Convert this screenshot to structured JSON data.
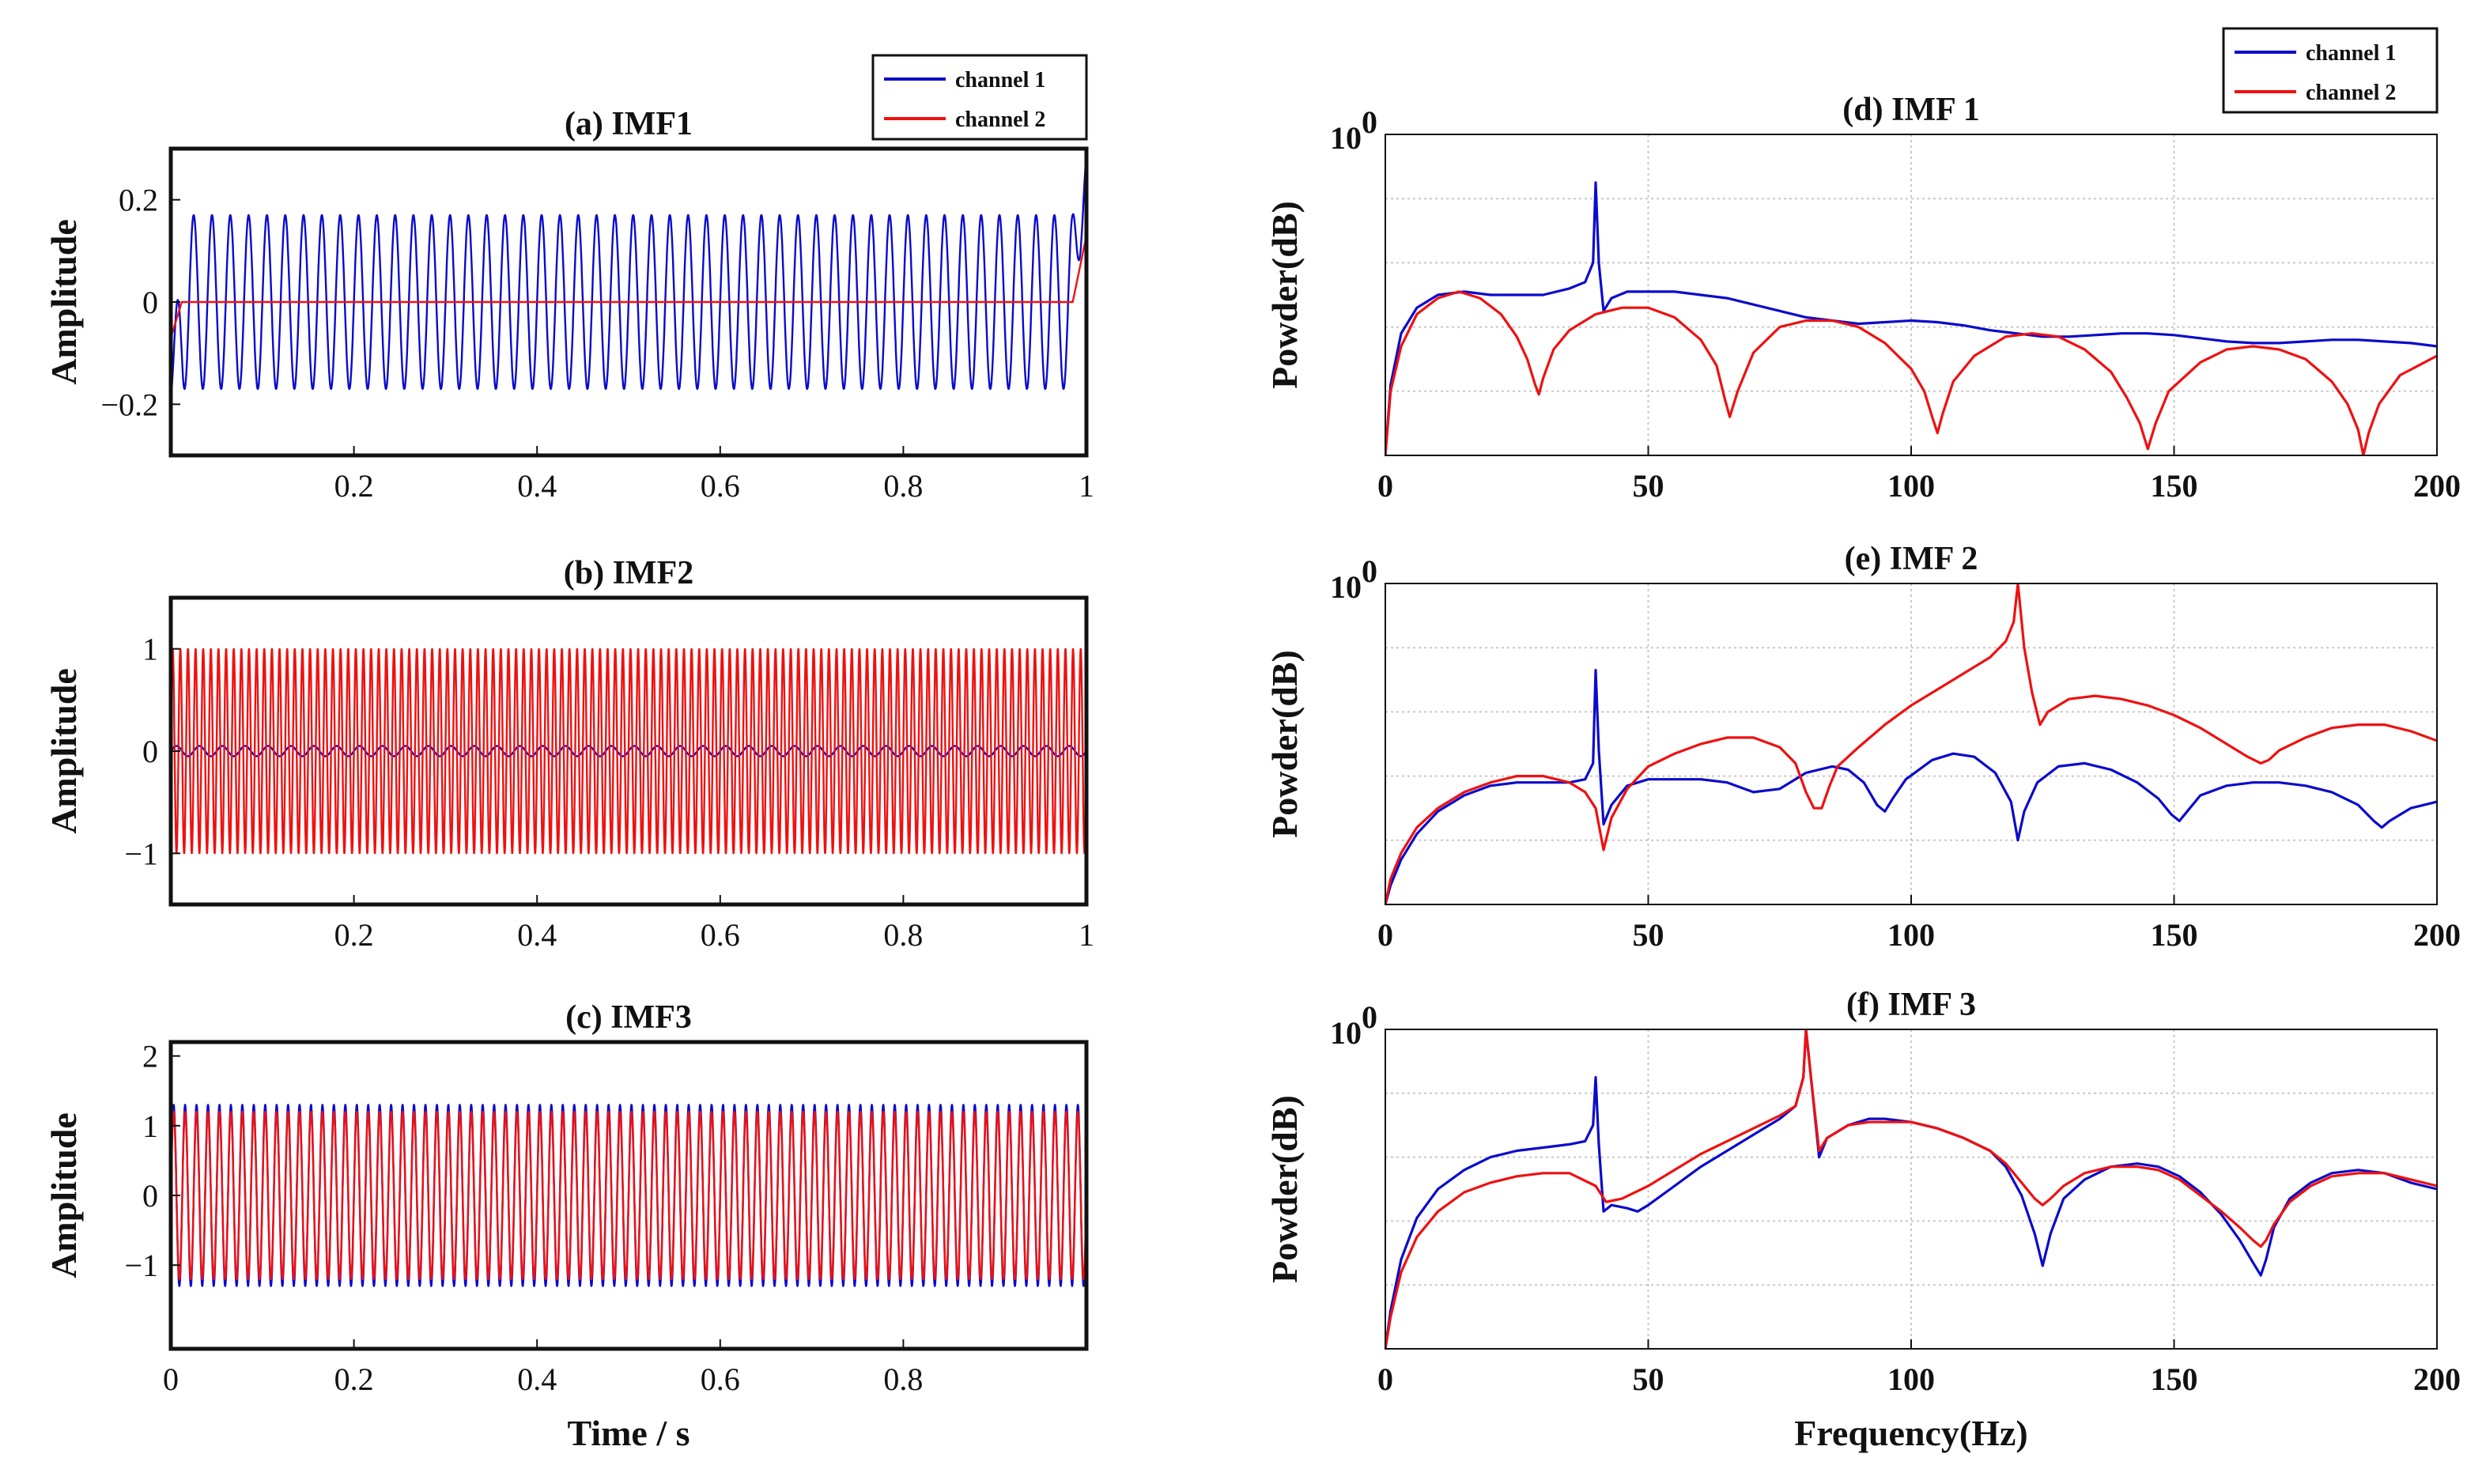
{
  "colors": {
    "channel1": "#0b0bcc",
    "channel2": "#ee1111",
    "axis": "#111111",
    "grid": "#c8c8c8"
  },
  "chart_data": [
    {
      "id": "a",
      "type": "line",
      "title": "(a) IMF1",
      "xlabel": "",
      "ylabel": "Amplitude",
      "xlim": [
        0,
        1
      ],
      "ylim": [
        -0.3,
        0.3
      ],
      "xticks": [
        "0.2",
        "0.4",
        "0.6",
        "0.8",
        "1"
      ],
      "yticks": [
        "0.2",
        "0",
        "−0.2"
      ],
      "legend": {
        "position": "top-right",
        "entries": [
          "channel 1",
          "channel 2"
        ]
      },
      "series": [
        {
          "name": "channel 1",
          "signal": "sine",
          "frequency_hz": 50,
          "amplitude": 0.17,
          "edge_start": -0.19,
          "edge_end": 0.29
        },
        {
          "name": "channel 2",
          "signal": "flat",
          "value": 0,
          "edge_start": -0.07,
          "edge_end": 0.13
        }
      ]
    },
    {
      "id": "b",
      "type": "line",
      "title": "(b) IMF2",
      "xlabel": "",
      "ylabel": "Amplitude",
      "xlim": [
        0,
        1
      ],
      "ylim": [
        -1.5,
        1.5
      ],
      "xticks": [
        "0.2",
        "0.4",
        "0.6",
        "0.8",
        "1"
      ],
      "yticks": [
        "1",
        "0",
        "−1"
      ],
      "series": [
        {
          "name": "channel 1",
          "signal": "sine",
          "frequency_hz": 40,
          "amplitude": 0.05
        },
        {
          "name": "channel 2",
          "signal": "sine",
          "frequency_hz": 120,
          "amplitude": 1.0
        }
      ]
    },
    {
      "id": "c",
      "type": "line",
      "title": "(c) IMF3",
      "xlabel": "Time / s",
      "ylabel": "Amplitude",
      "xlim": [
        0,
        1
      ],
      "ylim": [
        -2.2,
        2.2
      ],
      "xticks": [
        "0",
        "0.2",
        "0.4",
        "0.6",
        "0.8"
      ],
      "yticks": [
        "2",
        "1",
        "0",
        "−1"
      ],
      "series": [
        {
          "name": "channel 1",
          "signal": "sine",
          "frequency_hz": 80,
          "amplitude": 1.3
        },
        {
          "name": "channel 2",
          "signal": "sine",
          "frequency_hz": 80,
          "amplitude": 1.2
        }
      ]
    },
    {
      "id": "d",
      "type": "line",
      "title": "(d)  IMF 1",
      "xlabel": "",
      "ylabel": "Powder(dB)",
      "xlim": [
        0,
        200
      ],
      "ylim": [
        0,
        1
      ],
      "ytick_top": "10",
      "ytick_top_exp": "0",
      "xticks": [
        "0",
        "50",
        "100",
        "150",
        "200"
      ],
      "legend": {
        "position": "top-right",
        "entries": [
          "channel 1",
          "channel 2"
        ]
      },
      "series": [
        {
          "name": "channel 1",
          "x": [
            0,
            1,
            3,
            6,
            10,
            15,
            20,
            25,
            30,
            35,
            38,
            39.5,
            40,
            40.6,
            41.5,
            43,
            46,
            50,
            55,
            60,
            65,
            70,
            75,
            80,
            85,
            90,
            95,
            100,
            105,
            110,
            115,
            120,
            125,
            130,
            135,
            140,
            145,
            150,
            155,
            160,
            165,
            170,
            175,
            180,
            185,
            190,
            195,
            200
          ],
          "y": [
            0.0,
            0.22,
            0.38,
            0.46,
            0.5,
            0.51,
            0.5,
            0.5,
            0.5,
            0.52,
            0.54,
            0.6,
            0.85,
            0.6,
            0.45,
            0.49,
            0.51,
            0.51,
            0.51,
            0.5,
            0.49,
            0.47,
            0.45,
            0.43,
            0.42,
            0.41,
            0.415,
            0.42,
            0.415,
            0.405,
            0.39,
            0.38,
            0.37,
            0.37,
            0.375,
            0.38,
            0.38,
            0.375,
            0.365,
            0.355,
            0.35,
            0.35,
            0.355,
            0.36,
            0.36,
            0.355,
            0.35,
            0.34
          ]
        },
        {
          "name": "channel 2",
          "x": [
            0,
            1,
            3,
            6,
            10,
            14,
            18,
            22,
            25,
            27,
            28.5,
            29.2,
            30,
            32,
            35,
            40,
            45,
            50,
            55,
            60,
            63,
            64.5,
            65.5,
            67,
            70,
            75,
            80,
            85,
            90,
            95,
            100,
            102.5,
            104,
            105,
            106,
            108,
            112,
            118,
            123,
            128,
            133,
            138,
            141,
            143.5,
            145,
            146.5,
            149,
            155,
            160,
            165,
            170,
            175,
            180,
            183,
            185,
            186,
            187,
            189,
            193,
            200
          ],
          "y": [
            0.0,
            0.2,
            0.34,
            0.44,
            0.49,
            0.51,
            0.49,
            0.44,
            0.37,
            0.3,
            0.22,
            0.19,
            0.24,
            0.33,
            0.39,
            0.44,
            0.46,
            0.46,
            0.43,
            0.36,
            0.28,
            0.18,
            0.12,
            0.2,
            0.32,
            0.4,
            0.42,
            0.42,
            0.4,
            0.35,
            0.27,
            0.2,
            0.12,
            0.07,
            0.13,
            0.23,
            0.31,
            0.37,
            0.38,
            0.37,
            0.33,
            0.26,
            0.18,
            0.1,
            0.02,
            0.1,
            0.2,
            0.29,
            0.33,
            0.34,
            0.33,
            0.3,
            0.23,
            0.16,
            0.08,
            0.0,
            0.07,
            0.16,
            0.25,
            0.31
          ]
        }
      ]
    },
    {
      "id": "e",
      "type": "line",
      "title": "(e)  IMF 2",
      "xlabel": "",
      "ylabel": "Powder(dB)",
      "xlim": [
        0,
        200
      ],
      "ylim": [
        0,
        1
      ],
      "ytick_top": "10",
      "ytick_top_exp": "0",
      "xticks": [
        "0",
        "50",
        "100",
        "150",
        "200"
      ],
      "series": [
        {
          "name": "channel 1",
          "x": [
            0,
            1,
            3,
            6,
            10,
            15,
            20,
            25,
            30,
            35,
            38,
            39.5,
            40,
            40.6,
            41.5,
            43,
            46,
            50,
            55,
            60,
            65,
            70,
            75,
            80,
            85,
            88,
            91,
            93.5,
            95,
            96.5,
            99,
            104,
            108,
            112,
            116,
            119,
            120.3,
            121.5,
            124,
            128,
            133,
            138,
            143,
            147,
            149.5,
            151,
            152.5,
            155,
            160,
            165,
            170,
            175,
            180,
            185,
            188,
            189.5,
            191,
            195,
            200
          ],
          "y": [
            0.0,
            0.06,
            0.14,
            0.22,
            0.29,
            0.34,
            0.37,
            0.38,
            0.38,
            0.38,
            0.39,
            0.44,
            0.73,
            0.48,
            0.25,
            0.31,
            0.37,
            0.39,
            0.39,
            0.39,
            0.38,
            0.35,
            0.36,
            0.41,
            0.43,
            0.42,
            0.38,
            0.31,
            0.29,
            0.33,
            0.39,
            0.45,
            0.47,
            0.46,
            0.41,
            0.32,
            0.2,
            0.29,
            0.38,
            0.43,
            0.44,
            0.42,
            0.38,
            0.33,
            0.28,
            0.26,
            0.29,
            0.34,
            0.37,
            0.38,
            0.38,
            0.37,
            0.35,
            0.31,
            0.26,
            0.24,
            0.26,
            0.3,
            0.32
          ]
        },
        {
          "name": "channel 2",
          "x": [
            0,
            1,
            3,
            6,
            10,
            15,
            20,
            25,
            30,
            35,
            38,
            40,
            41.5,
            43,
            46,
            50,
            55,
            60,
            65,
            70,
            75,
            78,
            80,
            81.5,
            83,
            84.5,
            86,
            90,
            95,
            100,
            105,
            110,
            115,
            118,
            119.5,
            120.3,
            121.5,
            123,
            124.5,
            126,
            130,
            135,
            140,
            145,
            150,
            155,
            160,
            164,
            166.5,
            168,
            170,
            175,
            180,
            185,
            190,
            195,
            200
          ],
          "y": [
            0.0,
            0.08,
            0.16,
            0.24,
            0.3,
            0.35,
            0.38,
            0.4,
            0.4,
            0.38,
            0.35,
            0.3,
            0.17,
            0.27,
            0.36,
            0.43,
            0.47,
            0.5,
            0.52,
            0.52,
            0.49,
            0.44,
            0.35,
            0.3,
            0.3,
            0.37,
            0.43,
            0.49,
            0.56,
            0.62,
            0.67,
            0.72,
            0.77,
            0.82,
            0.88,
            1.0,
            0.8,
            0.66,
            0.56,
            0.6,
            0.64,
            0.65,
            0.64,
            0.62,
            0.59,
            0.55,
            0.5,
            0.46,
            0.44,
            0.45,
            0.48,
            0.52,
            0.55,
            0.56,
            0.56,
            0.54,
            0.51
          ]
        }
      ]
    },
    {
      "id": "f",
      "type": "line",
      "title": "(f)  IMF 3",
      "xlabel": "Frequency(Hz)",
      "ylabel": "Powder(dB)",
      "xlim": [
        0,
        200
      ],
      "ylim": [
        0,
        1
      ],
      "ytick_top": "10",
      "ytick_top_exp": "0",
      "xticks": [
        "0",
        "50",
        "100",
        "150",
        "200"
      ],
      "series": [
        {
          "name": "channel 1",
          "x": [
            0,
            1,
            3,
            6,
            10,
            15,
            20,
            25,
            30,
            35,
            38,
            39.5,
            40,
            40.6,
            41.5,
            43,
            46,
            48,
            50,
            55,
            60,
            65,
            70,
            75,
            78,
            79.5,
            80,
            81,
            82.5,
            84,
            88,
            92,
            95,
            100,
            105,
            110,
            115,
            118,
            121,
            123.5,
            125,
            126.5,
            129,
            133,
            138,
            143,
            147,
            151,
            155,
            159,
            162.5,
            165,
            166.5,
            167.5,
            169,
            172,
            176,
            180,
            185,
            190,
            195,
            200
          ],
          "y": [
            0.0,
            0.12,
            0.28,
            0.41,
            0.5,
            0.56,
            0.6,
            0.62,
            0.63,
            0.64,
            0.65,
            0.7,
            0.85,
            0.64,
            0.43,
            0.45,
            0.44,
            0.43,
            0.45,
            0.51,
            0.57,
            0.62,
            0.67,
            0.72,
            0.76,
            0.85,
            1.0,
            0.84,
            0.6,
            0.66,
            0.7,
            0.72,
            0.72,
            0.71,
            0.69,
            0.66,
            0.62,
            0.57,
            0.48,
            0.36,
            0.26,
            0.36,
            0.47,
            0.53,
            0.57,
            0.58,
            0.57,
            0.54,
            0.49,
            0.42,
            0.34,
            0.27,
            0.23,
            0.28,
            0.38,
            0.47,
            0.52,
            0.55,
            0.56,
            0.55,
            0.52,
            0.5
          ]
        },
        {
          "name": "channel 2",
          "x": [
            0,
            1,
            3,
            6,
            10,
            15,
            20,
            25,
            30,
            35,
            40,
            42,
            45,
            50,
            55,
            60,
            65,
            70,
            75,
            78,
            79.5,
            80,
            81,
            82.5,
            84,
            88,
            92,
            95,
            100,
            105,
            110,
            115,
            118,
            121,
            123.5,
            125,
            126.5,
            129,
            133,
            138,
            143,
            147,
            151,
            155,
            159,
            162.5,
            165,
            166.5,
            167.5,
            169,
            172,
            176,
            180,
            185,
            190,
            195,
            200
          ],
          "y": [
            0.0,
            0.1,
            0.24,
            0.35,
            0.43,
            0.49,
            0.52,
            0.54,
            0.55,
            0.55,
            0.51,
            0.46,
            0.47,
            0.51,
            0.56,
            0.61,
            0.65,
            0.69,
            0.73,
            0.76,
            0.85,
            1.0,
            0.84,
            0.62,
            0.66,
            0.7,
            0.71,
            0.71,
            0.71,
            0.69,
            0.66,
            0.62,
            0.58,
            0.52,
            0.47,
            0.45,
            0.47,
            0.51,
            0.55,
            0.57,
            0.57,
            0.56,
            0.53,
            0.48,
            0.43,
            0.38,
            0.34,
            0.32,
            0.34,
            0.39,
            0.46,
            0.51,
            0.54,
            0.55,
            0.55,
            0.53,
            0.51
          ]
        }
      ]
    }
  ]
}
